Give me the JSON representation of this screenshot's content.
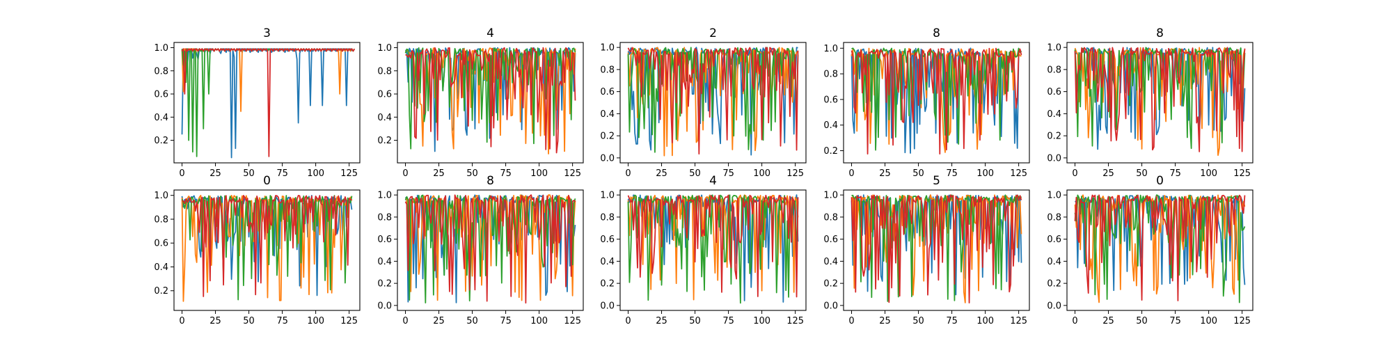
{
  "figure": {
    "background": "#ffffff"
  },
  "palette": [
    "#1f77b4",
    "#ff7f0e",
    "#2ca02c",
    "#d62728"
  ],
  "chart_data": [
    {
      "type": "line",
      "title": "3",
      "x_range": [
        0,
        127
      ],
      "ylim": [
        0.05,
        1.0
      ],
      "yticks": [
        0.2,
        0.4,
        0.6,
        0.8,
        1.0
      ],
      "xticks": [
        0,
        25,
        50,
        75,
        100,
        125
      ],
      "series": [
        {
          "values": [
            0.25,
            0.98,
            0.92,
            0.99,
            0.85,
            0.98,
            0.96,
            0.99,
            0.91,
            0.97,
            0.99,
            0.94,
            0.9,
            0.99,
            0.97,
            0.99,
            0.98,
            0.96,
            0.99,
            0.97,
            0.99,
            0.95,
            0.99,
            0.98,
            0.97,
            0.99,
            0.98,
            0.99,
            0.97,
            0.95,
            0.99,
            0.98,
            0.99,
            0.96,
            0.99,
            0.97,
            0.99,
            0.05,
            0.98,
            0.92,
            0.13,
            0.97,
            0.99,
            0.98,
            0.99,
            0.96,
            0.99,
            0.97,
            0.99,
            0.98,
            0.99,
            0.96,
            0.99,
            0.97,
            0.99,
            0.98,
            0.99,
            0.96,
            0.99,
            0.97,
            0.99,
            0.98,
            0.99,
            0.97,
            0.99,
            0.98,
            0.99,
            0.96,
            0.99,
            0.97,
            0.99,
            0.98,
            0.99,
            0.97,
            0.99,
            0.98,
            0.99,
            0.96,
            0.99,
            0.97,
            0.99,
            0.98,
            0.99,
            0.97,
            0.99,
            0.98,
            0.9,
            0.35,
            0.95,
            0.99,
            0.97,
            0.99,
            0.98,
            0.99,
            0.97,
            0.99,
            0.5,
            0.99,
            0.97,
            0.99,
            0.98,
            0.99,
            0.97,
            0.99,
            0.98,
            0.5,
            0.99,
            0.97,
            0.99,
            0.98,
            0.99,
            0.97,
            0.99,
            0.98,
            0.99,
            0.97,
            0.99,
            0.98,
            0.99,
            0.97,
            0.99,
            0.98,
            0.99,
            0.5,
            0.99,
            0.98,
            0.99,
            0.97
          ]
        },
        {
          "values": [
            0.98,
            0.62,
            0.99,
            0.97,
            0.99,
            0.98,
            0.99,
            0.97,
            0.99,
            0.98,
            0.95,
            0.99,
            0.97,
            0.99,
            0.98,
            0.99,
            0.97,
            0.99,
            0.98,
            0.99,
            0.97,
            0.99,
            0.98,
            0.99,
            0.97,
            0.99,
            0.98,
            0.99,
            0.97,
            0.99,
            0.98,
            0.99,
            0.97,
            0.99,
            0.98,
            0.99,
            0.97,
            0.99,
            0.98,
            0.99,
            0.97,
            0.99,
            0.98,
            0.99,
            0.45,
            0.99,
            0.98,
            0.99,
            0.97,
            0.99,
            0.98,
            0.99,
            0.97,
            0.99,
            0.98,
            0.99,
            0.97,
            0.99,
            0.98,
            0.99,
            0.97,
            0.99,
            0.98,
            0.99,
            0.97,
            0.99,
            0.98,
            0.99,
            0.97,
            0.99,
            0.98,
            0.99,
            0.97,
            0.99,
            0.98,
            0.99,
            0.97,
            0.99,
            0.98,
            0.99,
            0.97,
            0.99,
            0.98,
            0.99,
            0.97,
            0.99,
            0.98,
            0.99,
            0.97,
            0.99,
            0.98,
            0.99,
            0.97,
            0.99,
            0.98,
            0.99,
            0.97,
            0.99,
            0.98,
            0.99,
            0.97,
            0.99,
            0.98,
            0.99,
            0.97,
            0.99,
            0.98,
            0.99,
            0.97,
            0.99,
            0.98,
            0.99,
            0.97,
            0.99,
            0.98,
            0.99,
            0.97,
            0.99,
            0.6,
            0.99,
            0.98,
            0.99,
            0.97,
            0.99,
            0.98,
            0.99,
            0.97,
            0.99
          ]
        },
        {
          "values": [
            0.99,
            0.85,
            0.97,
            0.7,
            0.99,
            0.2,
            0.98,
            0.99,
            0.1,
            0.97,
            0.99,
            0.06,
            0.98,
            0.99,
            0.97,
            0.99,
            0.3,
            0.98,
            0.99,
            0.97,
            0.6,
            0.99,
            0.98,
            0.99,
            0.97,
            0.99,
            0.98,
            0.99,
            0.97,
            0.99,
            0.98,
            0.99,
            0.97,
            0.99,
            0.98,
            0.99,
            0.97,
            0.99,
            0.98,
            0.99,
            0.97,
            0.99,
            0.98,
            0.99,
            0.97,
            0.99,
            0.98,
            0.99,
            0.97,
            0.99,
            0.98,
            0.99,
            0.97,
            0.99,
            0.98,
            0.99,
            0.97,
            0.99,
            0.98,
            0.99,
            0.97,
            0.99,
            0.98,
            0.99,
            0.97,
            0.99,
            0.98,
            0.99,
            0.97,
            0.99,
            0.98,
            0.99,
            0.97,
            0.99,
            0.98,
            0.99,
            0.97,
            0.99,
            0.98,
            0.99,
            0.97,
            0.99,
            0.98,
            0.99,
            0.97,
            0.99,
            0.98,
            0.99,
            0.97,
            0.99,
            0.98,
            0.99,
            0.97,
            0.99,
            0.98,
            0.99,
            0.97,
            0.99,
            0.98,
            0.99,
            0.97,
            0.99,
            0.98,
            0.99,
            0.97,
            0.99,
            0.98,
            0.99,
            0.97,
            0.99,
            0.98,
            0.99,
            0.97,
            0.99,
            0.98,
            0.99,
            0.97,
            0.99,
            0.98,
            0.99,
            0.97,
            0.99,
            0.98,
            0.99,
            0.97,
            0.99,
            0.98,
            0.99,
            0.97,
            0.99
          ]
        },
        {
          "values": [
            0.97,
            0.99,
            0.6,
            0.99,
            0.97,
            0.99,
            0.98,
            0.99,
            0.97,
            0.99,
            0.98,
            0.99,
            0.97,
            0.99,
            0.98,
            0.99,
            0.97,
            0.99,
            0.98,
            0.99,
            0.97,
            0.99,
            0.98,
            0.99,
            0.97,
            0.99,
            0.98,
            0.99,
            0.97,
            0.99,
            0.98,
            0.99,
            0.97,
            0.99,
            0.98,
            0.99,
            0.97,
            0.99,
            0.98,
            0.99,
            0.97,
            0.99,
            0.98,
            0.99,
            0.97,
            0.99,
            0.98,
            0.99,
            0.97,
            0.99,
            0.98,
            0.99,
            0.97,
            0.99,
            0.98,
            0.99,
            0.97,
            0.99,
            0.98,
            0.99,
            0.97,
            0.99,
            0.98,
            0.99,
            0.97,
            0.06,
            0.98,
            0.99,
            0.97,
            0.99,
            0.98,
            0.99,
            0.97,
            0.99,
            0.98,
            0.99,
            0.97,
            0.99,
            0.98,
            0.99,
            0.97,
            0.99,
            0.98,
            0.99,
            0.97,
            0.99,
            0.98,
            0.99,
            0.97,
            0.99,
            0.98,
            0.99,
            0.97,
            0.99,
            0.98,
            0.99,
            0.97,
            0.99,
            0.98,
            0.99,
            0.97,
            0.99,
            0.98,
            0.99,
            0.97,
            0.99,
            0.98,
            0.99,
            0.97,
            0.99,
            0.98,
            0.99,
            0.97,
            0.99,
            0.98,
            0.99,
            0.97,
            0.99,
            0.98,
            0.99,
            0.97,
            0.99,
            0.98,
            0.99,
            0.97,
            0.99,
            0.98,
            0.99,
            0.97,
            0.99
          ]
        }
      ]
    },
    {
      "type": "line",
      "title": "4",
      "x_range": [
        0,
        127
      ],
      "ylim": [
        0.05,
        1.0
      ],
      "yticks": [
        0.2,
        0.4,
        0.6,
        0.8,
        1.0
      ],
      "xticks": [
        0,
        25,
        50,
        75,
        100,
        125
      ],
      "series": []
    },
    {
      "type": "line",
      "title": "2",
      "x_range": [
        0,
        127
      ],
      "ylim": [
        0.0,
        1.0
      ],
      "yticks": [
        0.0,
        0.2,
        0.4,
        0.6,
        0.8,
        1.0
      ],
      "xticks": [
        0,
        25,
        50,
        75,
        100,
        125
      ],
      "series": []
    },
    {
      "type": "line",
      "title": "8",
      "x_range": [
        0,
        127
      ],
      "ylim": [
        0.15,
        1.0
      ],
      "yticks": [
        0.2,
        0.4,
        0.6,
        0.8,
        1.0
      ],
      "xticks": [
        0,
        25,
        50,
        75,
        100,
        125
      ],
      "series": []
    },
    {
      "type": "line",
      "title": "8",
      "x_range": [
        0,
        127
      ],
      "ylim": [
        0.0,
        1.0
      ],
      "yticks": [
        0.0,
        0.2,
        0.4,
        0.6,
        0.8,
        1.0
      ],
      "xticks": [
        0,
        25,
        50,
        75,
        100,
        125
      ],
      "series": []
    },
    {
      "type": "line",
      "title": "0",
      "x_range": [
        0,
        127
      ],
      "ylim": [
        0.08,
        1.0
      ],
      "yticks": [
        0.2,
        0.4,
        0.6,
        0.8,
        1.0
      ],
      "xticks": [
        0,
        25,
        50,
        75,
        100,
        125
      ],
      "series": []
    },
    {
      "type": "line",
      "title": "8",
      "x_range": [
        0,
        127
      ],
      "ylim": [
        0.0,
        1.0
      ],
      "yticks": [
        0.0,
        0.2,
        0.4,
        0.6,
        0.8,
        1.0
      ],
      "xticks": [
        0,
        25,
        50,
        75,
        100,
        125
      ],
      "series": []
    },
    {
      "type": "line",
      "title": "4",
      "x_range": [
        0,
        127
      ],
      "ylim": [
        0.0,
        1.0
      ],
      "yticks": [
        0.0,
        0.2,
        0.4,
        0.6,
        0.8,
        1.0
      ],
      "xticks": [
        0,
        25,
        50,
        75,
        100,
        125
      ],
      "series": []
    },
    {
      "type": "line",
      "title": "5",
      "x_range": [
        0,
        127
      ],
      "ylim": [
        0.0,
        1.0
      ],
      "yticks": [
        0.0,
        0.2,
        0.4,
        0.6,
        0.8,
        1.0
      ],
      "xticks": [
        0,
        25,
        50,
        75,
        100,
        125
      ],
      "series": []
    },
    {
      "type": "line",
      "title": "0",
      "x_range": [
        0,
        127
      ],
      "ylim": [
        0.0,
        1.0
      ],
      "yticks": [
        0.0,
        0.2,
        0.4,
        0.6,
        0.8,
        1.0
      ],
      "xticks": [
        0,
        25,
        50,
        75,
        100,
        125
      ],
      "series": []
    }
  ]
}
